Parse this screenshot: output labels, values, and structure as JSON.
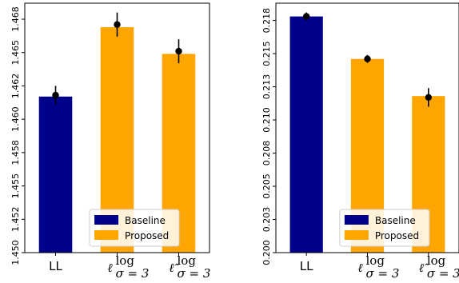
{
  "chart_data": [
    {
      "type": "bar",
      "categories": [
        "LL",
        "ℓ_{σ=3}^{log}",
        "ℓ̂_{σ=3}^{log}"
      ],
      "category_labels": [
        {
          "main": "LL"
        },
        {
          "main": "ℓ",
          "sup": "log",
          "sub": "σ = 3"
        },
        {
          "main": "ℓ̂",
          "sup": "log",
          "sub": "σ = 3"
        }
      ],
      "series": [
        {
          "name": "Baseline",
          "color": "#00008b"
        },
        {
          "name": "Proposed",
          "color": "#ffa500"
        }
      ],
      "bar_series": [
        "Baseline",
        "Proposed",
        "Proposed"
      ],
      "values": [
        1.4617,
        1.4669,
        1.4649
      ],
      "markers": [
        1.4618,
        1.4671,
        1.4651
      ],
      "errors": [
        0.0007,
        0.0009,
        0.0009
      ],
      "ylim": [
        1.45,
        1.4687
      ],
      "yticks": [
        1.45,
        1.452,
        1.455,
        1.458,
        1.46,
        1.462,
        1.465,
        1.468
      ],
      "ytick_values": [
        1.45,
        1.4525,
        1.455,
        1.4575,
        1.46,
        1.4625,
        1.465,
        1.4675
      ],
      "legend": {
        "position": "lower-right",
        "entries": [
          "Baseline",
          "Proposed"
        ]
      }
    },
    {
      "type": "bar",
      "categories": [
        "LL",
        "ℓ_{σ=3}^{log}",
        "ℓ̂_{σ=3}^{log}"
      ],
      "category_labels": [
        {
          "main": "LL"
        },
        {
          "main": "ℓ",
          "sup": "log",
          "sub": "σ = 3"
        },
        {
          "main": "ℓ̂",
          "sup": "log",
          "sub": "σ = 3"
        }
      ],
      "series": [
        {
          "name": "Baseline",
          "color": "#00008b"
        },
        {
          "name": "Proposed",
          "color": "#ffa500"
        }
      ],
      "bar_series": [
        "Baseline",
        "Proposed",
        "Proposed"
      ],
      "values": [
        0.2178,
        0.2146,
        0.2118
      ],
      "markers": [
        0.2178,
        0.2146,
        0.2117
      ],
      "errors": [
        0.0003,
        0.0003,
        0.0007
      ],
      "ylim": [
        0.2,
        0.2188
      ],
      "yticks": [
        0.2,
        0.203,
        0.205,
        0.208,
        0.21,
        0.213,
        0.215,
        0.218
      ],
      "ytick_values": [
        0.2,
        0.2025,
        0.205,
        0.2075,
        0.21,
        0.2125,
        0.215,
        0.2175
      ],
      "legend": {
        "position": "lower-right",
        "entries": [
          "Baseline",
          "Proposed"
        ]
      }
    }
  ]
}
